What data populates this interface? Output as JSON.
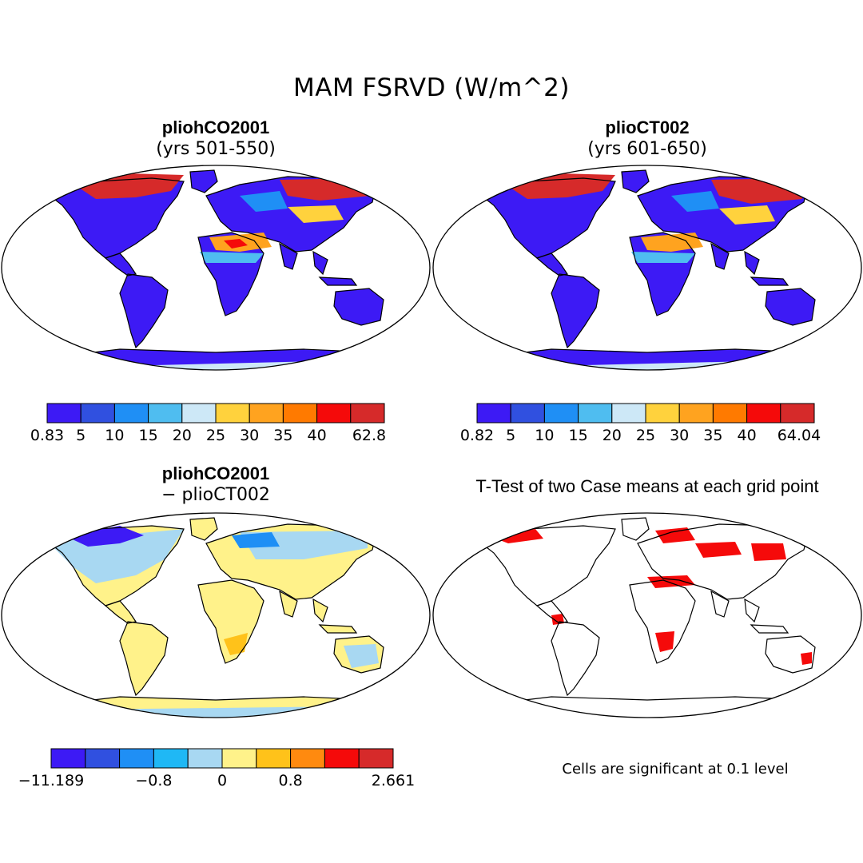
{
  "main_title": "MAM FSRVD (W/m^2)",
  "panels": [
    {
      "id": "p1",
      "title": "pliohCO2001",
      "subtitle": "(yrs 501-550)",
      "palette": "pos"
    },
    {
      "id": "p2",
      "title": "plioCT002",
      "subtitle": "(yrs 601-650)",
      "palette": "pos"
    },
    {
      "id": "p3",
      "title": "pliohCO2001",
      "subtitle": "− plioCT002",
      "palette": "diff"
    },
    {
      "id": "p4",
      "title": "T-Test of two Case means at each grid point",
      "subtitle": "",
      "palette": "sig"
    }
  ],
  "colorbars": {
    "cb1": {
      "colors": [
        "#3d1af5",
        "#3050e0",
        "#1f8ff5",
        "#4fbdf0",
        "#cde8f7",
        "#ffd23d",
        "#ffa31f",
        "#ff7a00",
        "#f50a0a",
        "#d62a2a"
      ],
      "labels": [
        "0.83",
        "5",
        "10",
        "15",
        "20",
        "25",
        "30",
        "35",
        "40",
        "62.8"
      ]
    },
    "cb2": {
      "colors": [
        "#3d1af5",
        "#3050e0",
        "#1f8ff5",
        "#4fbdf0",
        "#cde8f7",
        "#ffd23d",
        "#ffa31f",
        "#ff7a00",
        "#f50a0a",
        "#d62a2a"
      ],
      "labels": [
        "0.82",
        "5",
        "10",
        "15",
        "20",
        "25",
        "30",
        "35",
        "40",
        "64.04"
      ]
    },
    "cb3": {
      "colors": [
        "#3d1af5",
        "#3050e0",
        "#1f8ff5",
        "#1fb8f5",
        "#a8d8f2",
        "#fff28a",
        "#ffc21a",
        "#ff8a0f",
        "#f50a0a",
        "#d62a2a"
      ],
      "labels": [
        "−11.189",
        "−0.8",
        "0",
        "0.8",
        "2.661"
      ]
    }
  },
  "significance_note": "Cells are significant at 0.1 level",
  "colors": {
    "land_low": "#3d1af5",
    "sig_red": "#f50a0a",
    "diff_yellow": "#fff28a",
    "diff_blue": "#a8d8f2"
  }
}
